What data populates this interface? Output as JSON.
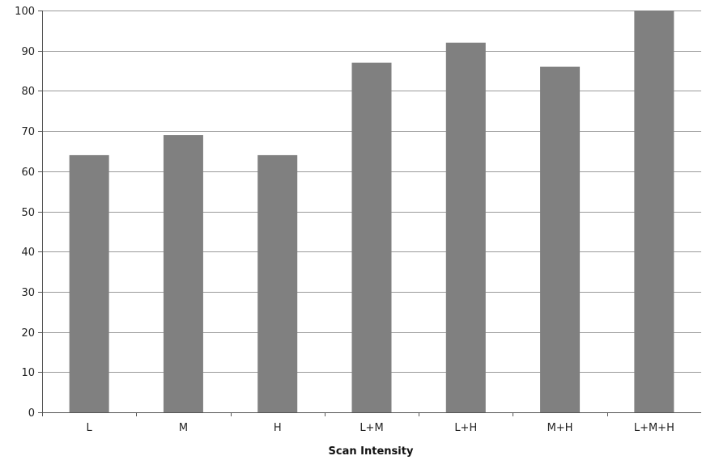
{
  "chart_data": {
    "type": "bar",
    "title": "",
    "xlabel": "Scan Intensity",
    "ylabel": "",
    "categories": [
      "L",
      "M",
      "H",
      "L+M",
      "L+H",
      "M+H",
      "L+M+H"
    ],
    "values": [
      64,
      69,
      64,
      87,
      92,
      86,
      100
    ],
    "ylim": [
      0,
      100
    ],
    "yticks": [
      0,
      10,
      20,
      30,
      40,
      50,
      60,
      70,
      80,
      90,
      100
    ],
    "grid": true,
    "legend": "none",
    "bar_color": "#808080",
    "grid_color": "#9a9a9a",
    "axis_color": "#555555"
  }
}
